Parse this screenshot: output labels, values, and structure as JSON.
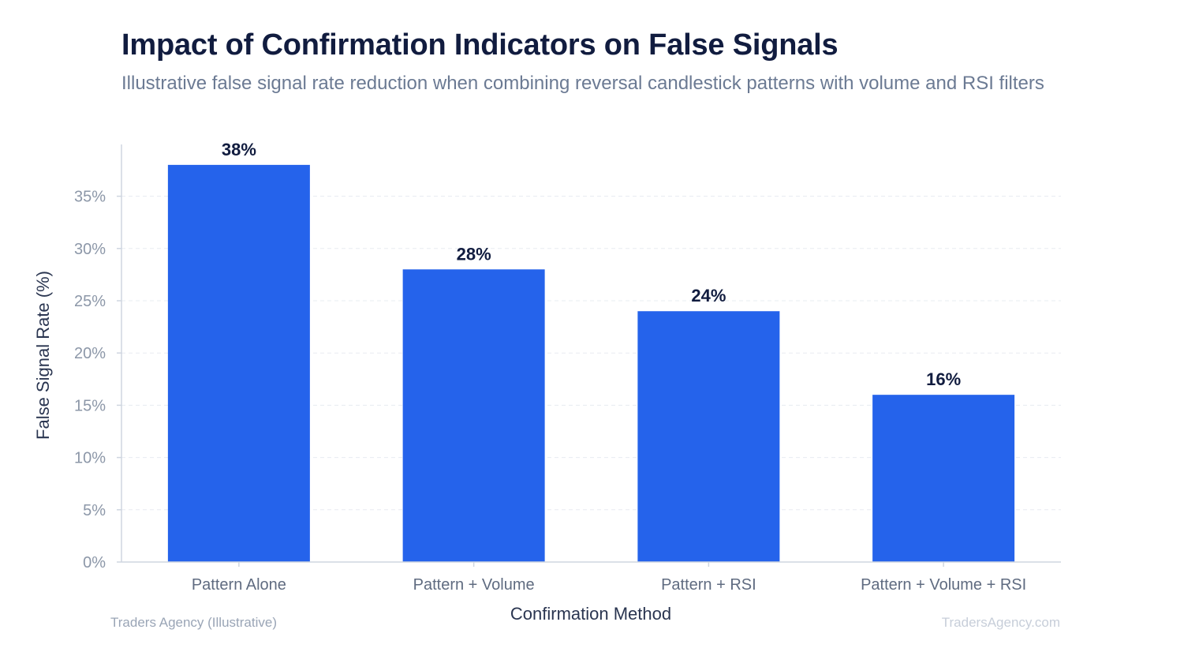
{
  "chart_data": {
    "type": "bar",
    "title": "Impact of Confirmation Indicators on False Signals",
    "subtitle": "Illustrative false signal rate reduction when combining reversal candlestick patterns with volume and RSI filters",
    "xlabel": "Confirmation Method",
    "ylabel": "False Signal Rate (%)",
    "categories": [
      "Pattern Alone",
      "Pattern + Volume",
      "Pattern + RSI",
      "Pattern + Volume + RSI"
    ],
    "values": [
      38,
      28,
      24,
      16
    ],
    "value_labels": [
      "38%",
      "28%",
      "24%",
      "16%"
    ],
    "ylim": [
      0,
      40
    ],
    "yticks": [
      0,
      5,
      10,
      15,
      20,
      25,
      30,
      35
    ],
    "ytick_labels": [
      "0%",
      "5%",
      "10%",
      "15%",
      "20%",
      "25%",
      "30%",
      "35%"
    ],
    "grid": true,
    "bar_color": "#2563eb"
  },
  "footer": {
    "source": "Traders Agency (Illustrative)",
    "watermark": "TradersAgency.com"
  }
}
